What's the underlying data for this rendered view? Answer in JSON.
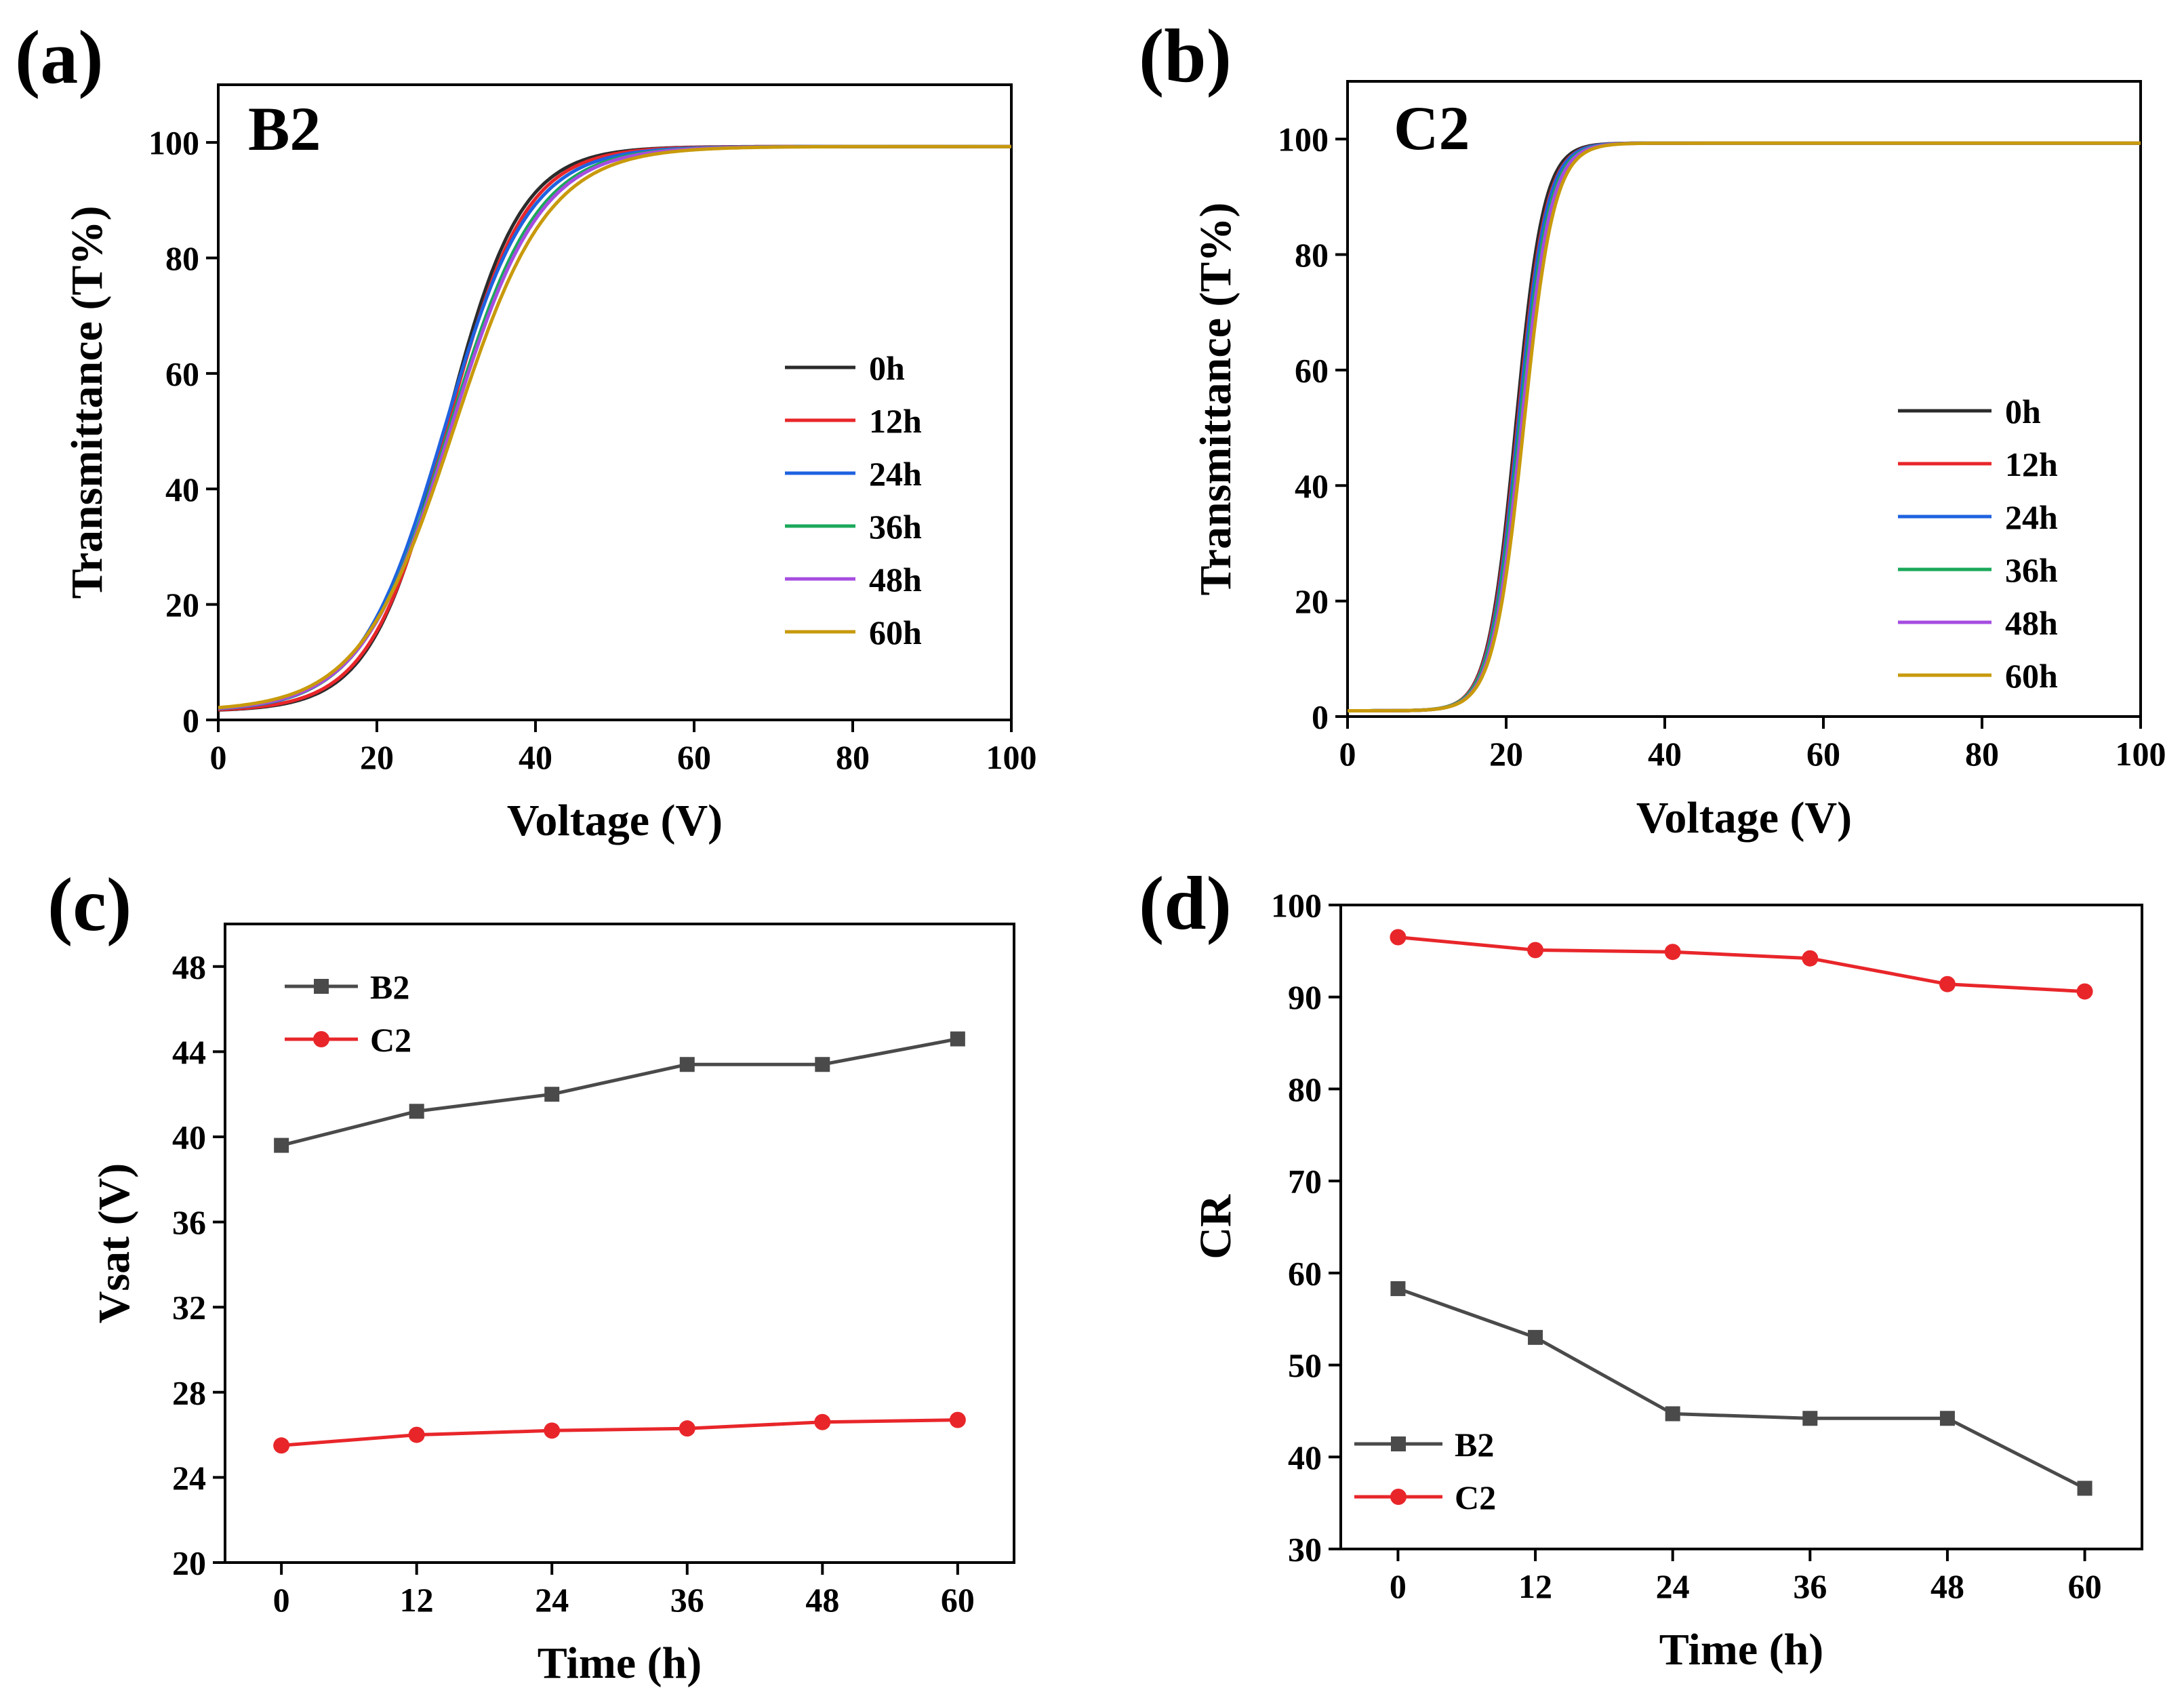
{
  "chart_data": [
    {
      "id": "a",
      "type": "line",
      "panel_label": "(a)",
      "title": "B2",
      "xlabel": "Voltage (V)",
      "ylabel": "Transmittance (T%)",
      "xlim": [
        0,
        100
      ],
      "ylim": [
        0,
        110
      ],
      "xticks": [
        0,
        20,
        40,
        60,
        80,
        100
      ],
      "yticks": [
        0,
        20,
        40,
        60,
        80,
        100
      ],
      "legend_position": "center-right",
      "curve_model": {
        "kind": "sigmoid",
        "baseline": 1.5,
        "top": 99.3
      },
      "series": [
        {
          "name": "0h",
          "color": "#2b2b2b",
          "midpoint_v": 28.6,
          "width_v": 4.7
        },
        {
          "name": "12h",
          "color": "#e8262a",
          "midpoint_v": 28.8,
          "width_v": 4.9
        },
        {
          "name": "24h",
          "color": "#1f62e0",
          "midpoint_v": 28.5,
          "width_v": 5.3
        },
        {
          "name": "36h",
          "color": "#1aa85a",
          "midpoint_v": 29.1,
          "width_v": 5.5
        },
        {
          "name": "48h",
          "color": "#a64de0",
          "midpoint_v": 29.3,
          "width_v": 5.6
        },
        {
          "name": "60h",
          "color": "#c89a0c",
          "midpoint_v": 29.7,
          "width_v": 5.9
        }
      ]
    },
    {
      "id": "b",
      "type": "line",
      "panel_label": "(b)",
      "title": "C2",
      "xlabel": "Voltage (V)",
      "ylabel": "Transmittance (T%)",
      "xlim": [
        0,
        100
      ],
      "ylim": [
        0,
        110
      ],
      "xticks": [
        0,
        20,
        40,
        60,
        80,
        100
      ],
      "yticks": [
        0,
        20,
        40,
        60,
        80,
        100
      ],
      "legend_position": "lower-right",
      "curve_model": {
        "kind": "sigmoid",
        "baseline": 1.0,
        "top": 99.3
      },
      "series": [
        {
          "name": "0h",
          "color": "#2b2b2b",
          "midpoint_v": 21.2,
          "width_v": 1.75
        },
        {
          "name": "12h",
          "color": "#e8262a",
          "midpoint_v": 21.4,
          "width_v": 1.8
        },
        {
          "name": "24h",
          "color": "#1f62e0",
          "midpoint_v": 21.5,
          "width_v": 1.8
        },
        {
          "name": "36h",
          "color": "#1aa85a",
          "midpoint_v": 21.7,
          "width_v": 1.85
        },
        {
          "name": "48h",
          "color": "#a64de0",
          "midpoint_v": 21.9,
          "width_v": 1.85
        },
        {
          "name": "60h",
          "color": "#c89a0c",
          "midpoint_v": 22.2,
          "width_v": 1.9
        }
      ]
    },
    {
      "id": "c",
      "type": "line",
      "panel_label": "(c)",
      "title": "",
      "xlabel": "Time (h)",
      "ylabel": "Vsat (V)",
      "x": [
        0,
        12,
        24,
        36,
        48,
        60
      ],
      "xlim": [
        -5,
        65
      ],
      "ylim": [
        20,
        50
      ],
      "xticks": [
        0,
        12,
        24,
        36,
        48,
        60
      ],
      "yticks": [
        20,
        24,
        28,
        32,
        36,
        40,
        44,
        48
      ],
      "legend_position": "top-left",
      "series": [
        {
          "name": "B2",
          "color": "#4a4a4a",
          "marker": "square",
          "values": [
            39.6,
            41.2,
            42.0,
            43.4,
            43.4,
            44.6
          ]
        },
        {
          "name": "C2",
          "color": "#e8262a",
          "marker": "circle",
          "values": [
            25.5,
            26.0,
            26.2,
            26.3,
            26.6,
            26.7
          ]
        }
      ]
    },
    {
      "id": "d",
      "type": "line",
      "panel_label": "(d)",
      "title": "",
      "xlabel": "Time (h)",
      "ylabel": "CR",
      "x": [
        0,
        12,
        24,
        36,
        48,
        60
      ],
      "xlim": [
        -5,
        65
      ],
      "ylim": [
        30,
        100
      ],
      "xticks": [
        0,
        12,
        24,
        36,
        48,
        60
      ],
      "yticks": [
        30,
        40,
        50,
        60,
        70,
        80,
        90,
        100
      ],
      "legend_position": "bottom-left",
      "series": [
        {
          "name": "B2",
          "color": "#4a4a4a",
          "marker": "square",
          "values": [
            58.3,
            53.0,
            44.7,
            44.2,
            44.2,
            36.6
          ]
        },
        {
          "name": "C2",
          "color": "#e8262a",
          "marker": "circle",
          "values": [
            96.5,
            95.1,
            94.9,
            94.2,
            91.4,
            90.6
          ]
        }
      ]
    }
  ]
}
